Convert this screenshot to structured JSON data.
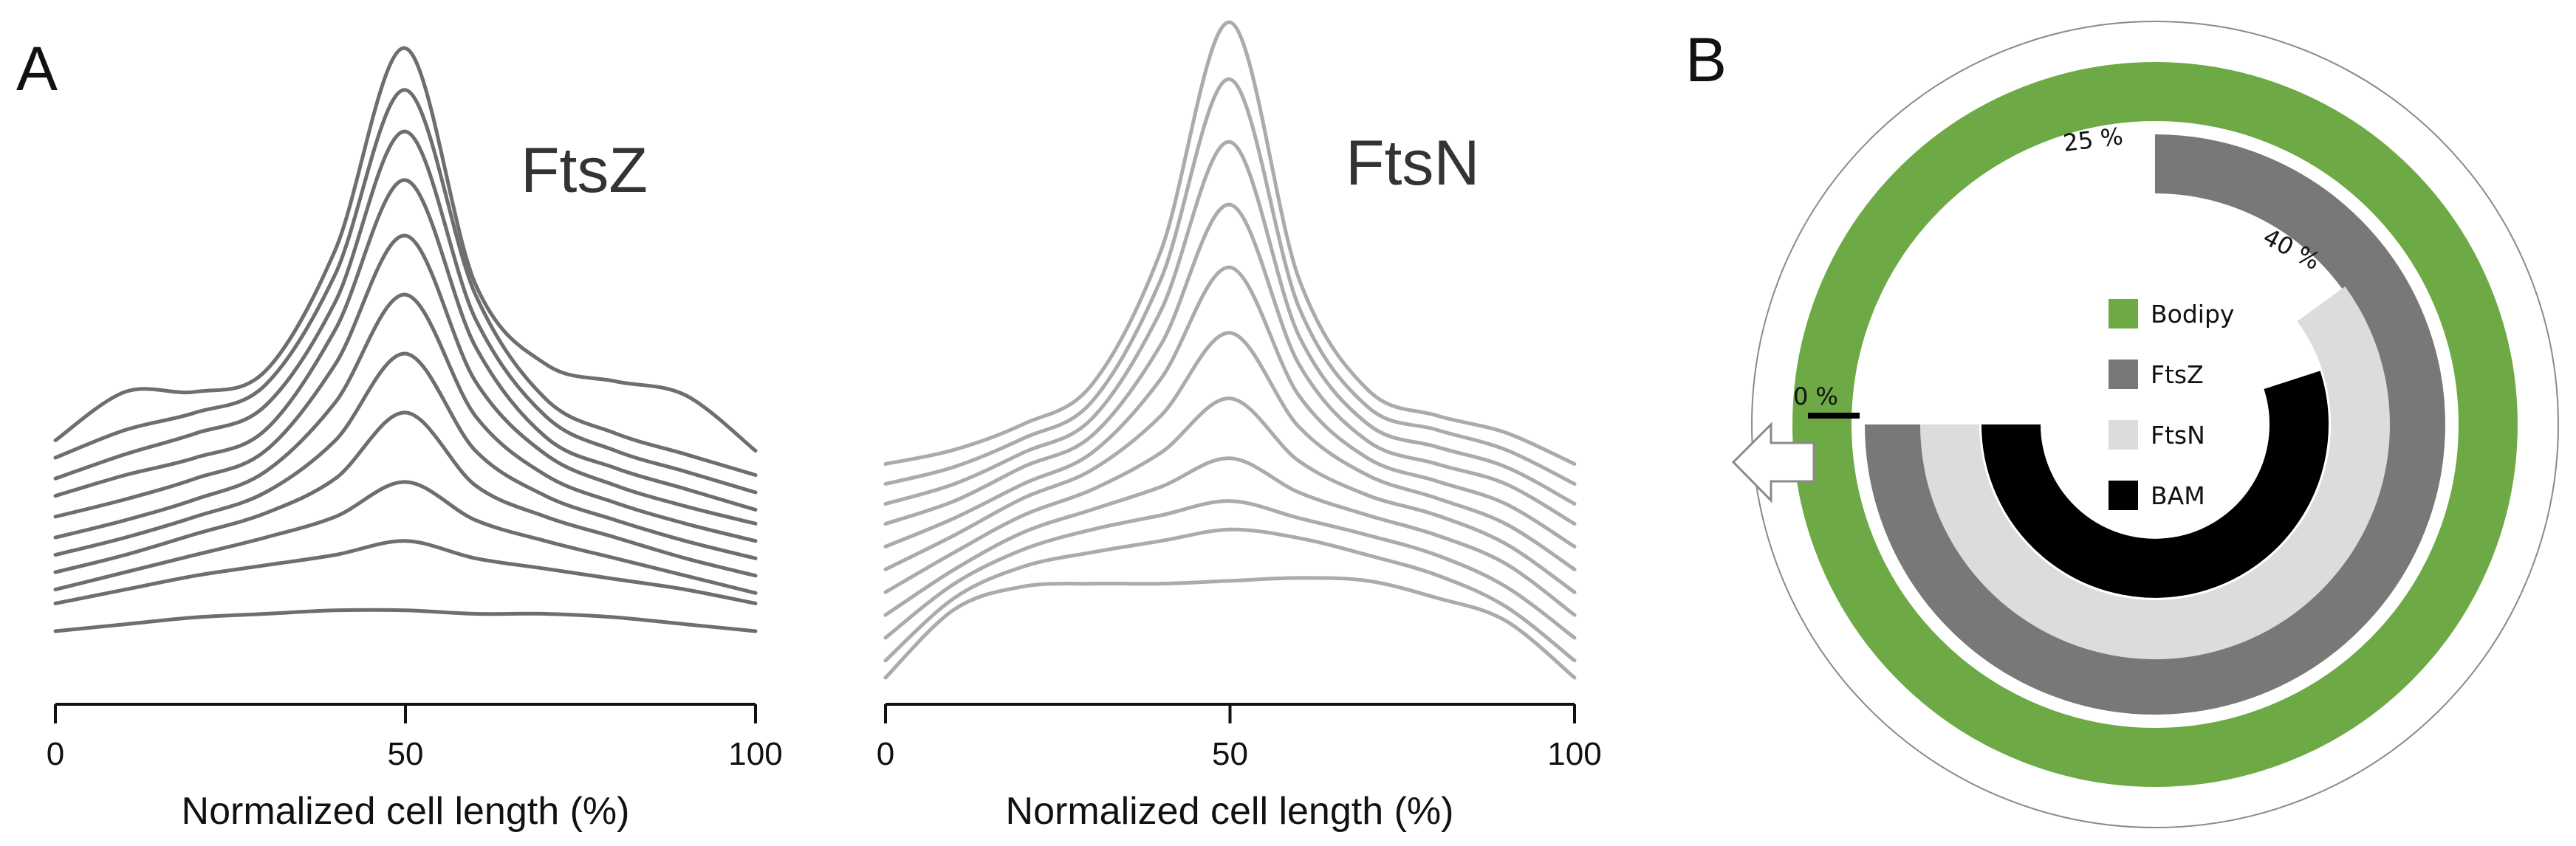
{
  "panels": {
    "a_label": "A",
    "b_label": "B"
  },
  "chart_data": [
    {
      "type": "line",
      "title": "FtsZ",
      "xlabel": "Normalized cell length (%)",
      "ylabel": "",
      "xlim": [
        0,
        100
      ],
      "x_ticks": [
        "0",
        "50",
        "100"
      ],
      "x": [
        0,
        10,
        20,
        30,
        40,
        50,
        60,
        70,
        80,
        90,
        100
      ],
      "color": "#6e6e6e",
      "series": [
        {
          "values": [
            0.1,
            0.12,
            0.14,
            0.15,
            0.16,
            0.16,
            0.15,
            0.15,
            0.14,
            0.12,
            0.1
          ]
        },
        {
          "values": [
            0.18,
            0.22,
            0.26,
            0.29,
            0.32,
            0.36,
            0.31,
            0.28,
            0.25,
            0.22,
            0.18
          ]
        },
        {
          "values": [
            0.22,
            0.27,
            0.32,
            0.37,
            0.43,
            0.53,
            0.42,
            0.36,
            0.31,
            0.26,
            0.21
          ]
        },
        {
          "values": [
            0.27,
            0.32,
            0.38,
            0.44,
            0.54,
            0.73,
            0.52,
            0.43,
            0.37,
            0.31,
            0.26
          ]
        },
        {
          "values": [
            0.32,
            0.37,
            0.43,
            0.5,
            0.65,
            0.9,
            0.62,
            0.49,
            0.42,
            0.36,
            0.31
          ]
        },
        {
          "values": [
            0.37,
            0.42,
            0.48,
            0.56,
            0.76,
            1.07,
            0.72,
            0.55,
            0.47,
            0.41,
            0.36
          ]
        },
        {
          "values": [
            0.43,
            0.48,
            0.54,
            0.62,
            0.87,
            1.24,
            0.82,
            0.61,
            0.52,
            0.46,
            0.41
          ]
        },
        {
          "values": [
            0.49,
            0.55,
            0.6,
            0.68,
            0.97,
            1.4,
            0.92,
            0.66,
            0.57,
            0.51,
            0.45
          ]
        },
        {
          "values": [
            0.54,
            0.61,
            0.67,
            0.75,
            1.05,
            1.54,
            1.0,
            0.72,
            0.62,
            0.56,
            0.5
          ]
        },
        {
          "values": [
            0.6,
            0.68,
            0.73,
            0.81,
            1.13,
            1.66,
            1.07,
            0.77,
            0.67,
            0.61,
            0.55
          ]
        },
        {
          "values": [
            0.65,
            0.79,
            0.79,
            0.85,
            1.2,
            1.78,
            1.1,
            0.87,
            0.82,
            0.78,
            0.62
          ]
        }
      ]
    },
    {
      "type": "line",
      "title": "FtsN",
      "xlabel": "Normalized cell length (%)",
      "ylabel": "",
      "xlim": [
        0,
        100
      ],
      "x_ticks": [
        "0",
        "50",
        "100"
      ],
      "x": [
        0,
        10,
        20,
        30,
        40,
        50,
        60,
        70,
        80,
        90,
        100
      ],
      "color": "#ababab",
      "series": [
        {
          "values": [
            0.0,
            0.24,
            0.32,
            0.33,
            0.33,
            0.34,
            0.35,
            0.34,
            0.28,
            0.2,
            0.0
          ]
        },
        {
          "values": [
            0.06,
            0.28,
            0.39,
            0.44,
            0.48,
            0.52,
            0.49,
            0.43,
            0.36,
            0.25,
            0.06
          ]
        },
        {
          "values": [
            0.14,
            0.33,
            0.45,
            0.52,
            0.57,
            0.62,
            0.56,
            0.5,
            0.43,
            0.32,
            0.14
          ]
        },
        {
          "values": [
            0.22,
            0.38,
            0.51,
            0.59,
            0.67,
            0.77,
            0.65,
            0.57,
            0.5,
            0.4,
            0.22
          ]
        },
        {
          "values": [
            0.3,
            0.44,
            0.57,
            0.66,
            0.79,
            0.98,
            0.76,
            0.64,
            0.57,
            0.47,
            0.3
          ]
        },
        {
          "values": [
            0.38,
            0.5,
            0.63,
            0.73,
            0.92,
            1.21,
            0.88,
            0.71,
            0.63,
            0.54,
            0.38
          ]
        },
        {
          "values": [
            0.46,
            0.56,
            0.68,
            0.79,
            1.05,
            1.44,
            0.99,
            0.77,
            0.69,
            0.61,
            0.46
          ]
        },
        {
          "values": [
            0.54,
            0.62,
            0.74,
            0.85,
            1.17,
            1.66,
            1.1,
            0.83,
            0.75,
            0.68,
            0.54
          ]
        },
        {
          "values": [
            0.61,
            0.68,
            0.79,
            0.91,
            1.29,
            1.88,
            1.2,
            0.89,
            0.81,
            0.74,
            0.61
          ]
        },
        {
          "values": [
            0.68,
            0.74,
            0.84,
            0.97,
            1.4,
            2.1,
            1.3,
            0.95,
            0.87,
            0.8,
            0.68
          ]
        },
        {
          "values": [
            0.75,
            0.8,
            0.89,
            1.03,
            1.5,
            2.3,
            1.4,
            1.01,
            0.92,
            0.86,
            0.75
          ]
        }
      ]
    },
    {
      "type": "pie",
      "subtype": "radial-bar",
      "title": "",
      "start_marker": "0 %",
      "unit": "%",
      "legend_position": "center",
      "series": [
        {
          "name": "Bodipy",
          "start": 0,
          "end": 100,
          "color": "#6daa45"
        },
        {
          "name": "FtsZ",
          "start": 25,
          "end": 100,
          "color": "#7a7777"
        },
        {
          "name": "FtsN",
          "start": 40,
          "end": 100,
          "color": "#dcdcdc"
        },
        {
          "name": "BAM",
          "start": 45,
          "end": 100,
          "color": "#000000"
        }
      ],
      "annotations": [
        "25 %",
        "40 %"
      ]
    }
  ]
}
